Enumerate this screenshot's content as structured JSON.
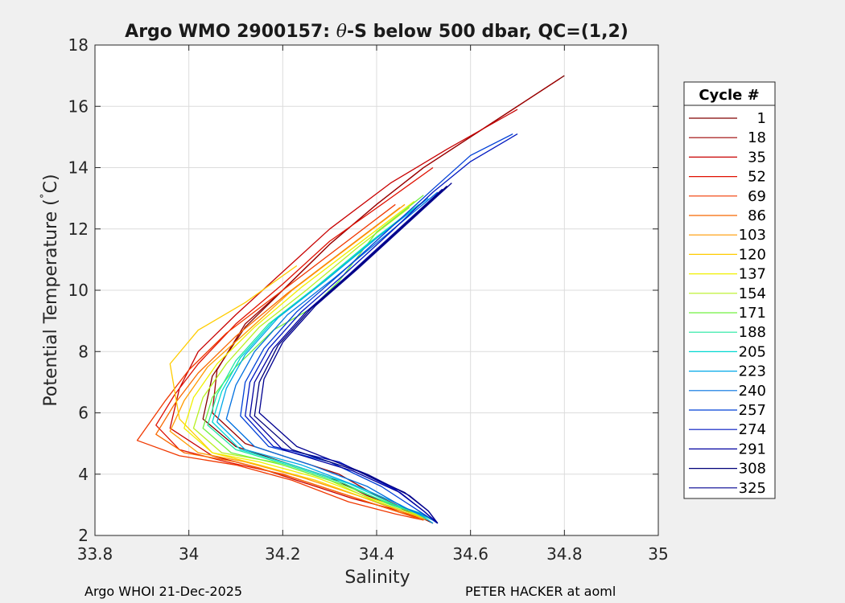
{
  "chart_data": {
    "type": "line",
    "title": "Argo WMO 2900157: θ-S below 500 dbar,  QC=(1,2)",
    "title_parts": {
      "prefix": "Argo WMO 2900157: ",
      "symbol": "θ",
      "suffix": "-S below 500 dbar,  QC=(1,2)"
    },
    "xlabel": "Salinity",
    "ylabel": "Potential Temperature (˚C)",
    "ylabel_parts": {
      "main": "Potential Temperature (",
      "degree": "˚",
      "unit": "C)"
    },
    "xlim": [
      33.8,
      35
    ],
    "ylim": [
      2,
      18
    ],
    "xticks": [
      33.8,
      34,
      34.2,
      34.4,
      34.6,
      34.8,
      35
    ],
    "xtick_labels": [
      "33.8",
      "34",
      "34.2",
      "34.4",
      "34.6",
      "34.8",
      "35"
    ],
    "yticks": [
      2,
      4,
      6,
      8,
      10,
      12,
      14,
      16,
      18
    ],
    "ytick_labels": [
      "2",
      "4",
      "6",
      "8",
      "10",
      "12",
      "14",
      "16",
      "18"
    ],
    "grid": true,
    "legend_title": "Cycle #",
    "legend_position": "outside right",
    "colormap": "jet",
    "series": [
      {
        "name": "1",
        "color": "#800000",
        "x": [
          34.8,
          34.65,
          34.5,
          34.4,
          34.3,
          34.2,
          34.12,
          34.05,
          34.03,
          34.1,
          34.2,
          34.3,
          34.38,
          34.45,
          34.52
        ],
        "y": [
          17.0,
          15.5,
          14.0,
          12.8,
          11.5,
          10.0,
          8.8,
          7.2,
          5.8,
          4.9,
          4.4,
          3.9,
          3.3,
          2.9,
          2.4
        ]
      },
      {
        "name": "18",
        "color": "#9c0000",
        "x": [
          34.79,
          34.64,
          34.5,
          34.4,
          34.3,
          34.2,
          34.12,
          34.06,
          34.05,
          34.12,
          34.22,
          34.32,
          34.4,
          34.47,
          34.52
        ],
        "y": [
          16.9,
          15.4,
          14.0,
          12.8,
          11.5,
          10.0,
          8.9,
          7.4,
          6.0,
          5.0,
          4.5,
          4.0,
          3.3,
          2.8,
          2.4
        ]
      },
      {
        "name": "35",
        "color": "#c80000",
        "x": [
          34.7,
          34.55,
          34.43,
          34.3,
          34.2,
          34.1,
          34.02,
          33.98,
          33.96,
          34.05,
          34.15,
          34.25,
          34.35,
          34.45,
          34.5
        ],
        "y": [
          15.9,
          14.6,
          13.5,
          12.0,
          10.6,
          9.2,
          8.0,
          6.8,
          5.5,
          4.6,
          4.2,
          3.7,
          3.2,
          2.8,
          2.5
        ]
      },
      {
        "name": "52",
        "color": "#e01000",
        "x": [
          34.52,
          34.42,
          34.3,
          34.2,
          34.1,
          34.02,
          33.97,
          33.93,
          33.98,
          34.08,
          34.2,
          34.32,
          34.42,
          34.5
        ],
        "y": [
          14.0,
          12.9,
          11.6,
          10.2,
          8.9,
          7.6,
          6.6,
          5.6,
          4.8,
          4.4,
          4.0,
          3.4,
          2.9,
          2.5
        ]
      },
      {
        "name": "69",
        "color": "#f03800",
        "x": [
          34.44,
          34.32,
          34.2,
          34.08,
          34.0,
          33.95,
          33.89,
          33.98,
          34.1,
          34.22,
          34.34,
          34.44,
          34.5
        ],
        "y": [
          12.8,
          11.4,
          10.0,
          8.6,
          7.4,
          6.4,
          5.1,
          4.6,
          4.3,
          3.8,
          3.1,
          2.7,
          2.5
        ]
      },
      {
        "name": "86",
        "color": "#f86800",
        "x": [
          34.45,
          34.33,
          34.21,
          34.1,
          34.02,
          33.97,
          33.93,
          33.99,
          34.1,
          34.22,
          34.34,
          34.44,
          34.5
        ],
        "y": [
          12.7,
          11.3,
          9.9,
          8.5,
          7.3,
          6.3,
          5.3,
          4.7,
          4.4,
          3.9,
          3.3,
          2.8,
          2.5
        ]
      },
      {
        "name": "103",
        "color": "#ff9a00",
        "x": [
          34.46,
          34.34,
          34.22,
          34.12,
          34.04,
          33.99,
          33.96,
          34.02,
          34.12,
          34.24,
          34.36,
          34.45,
          34.51
        ],
        "y": [
          12.8,
          11.4,
          10.0,
          8.6,
          7.5,
          6.4,
          5.4,
          4.7,
          4.4,
          3.9,
          3.3,
          2.8,
          2.5
        ]
      },
      {
        "name": "120",
        "color": "#ffcc00",
        "x": [
          34.23,
          34.12,
          34.02,
          33.96,
          33.98,
          34.05,
          34.15,
          34.27,
          34.38,
          34.46,
          34.51
        ],
        "y": [
          10.8,
          9.6,
          8.7,
          7.6,
          5.8,
          4.7,
          4.3,
          3.8,
          3.2,
          2.8,
          2.5
        ]
      },
      {
        "name": "137",
        "color": "#f0f000",
        "x": [
          34.48,
          34.36,
          34.24,
          34.14,
          34.06,
          34.01,
          33.99,
          34.05,
          34.15,
          34.27,
          34.39,
          34.47,
          34.51
        ],
        "y": [
          12.9,
          11.5,
          10.1,
          8.8,
          7.6,
          6.5,
          5.5,
          4.7,
          4.4,
          3.9,
          3.2,
          2.8,
          2.5
        ]
      },
      {
        "name": "154",
        "color": "#b8f020",
        "x": [
          34.47,
          34.36,
          34.25,
          34.15,
          34.08,
          34.03,
          34.01,
          34.07,
          34.18,
          34.3,
          34.4,
          34.48,
          34.51
        ],
        "y": [
          12.7,
          11.4,
          10.0,
          8.8,
          7.6,
          6.5,
          5.5,
          4.7,
          4.4,
          3.8,
          3.1,
          2.7,
          2.5
        ]
      },
      {
        "name": "171",
        "color": "#70f040",
        "x": [
          34.5,
          34.4,
          34.32,
          34.26,
          34.18,
          34.1,
          34.05,
          34.03,
          34.09,
          34.2,
          34.32,
          34.42,
          34.49,
          34.52
        ],
        "y": [
          13.1,
          11.9,
          10.3,
          9.4,
          8.7,
          7.5,
          6.5,
          5.5,
          4.7,
          4.3,
          3.7,
          3.1,
          2.7,
          2.5
        ]
      },
      {
        "name": "188",
        "color": "#20e8a0",
        "x": [
          34.49,
          34.38,
          34.27,
          34.17,
          34.1,
          34.06,
          34.04,
          34.1,
          34.21,
          34.33,
          34.43,
          34.49,
          34.52
        ],
        "y": [
          12.8,
          11.5,
          10.1,
          8.9,
          7.7,
          6.6,
          5.6,
          4.8,
          4.3,
          3.7,
          3.0,
          2.7,
          2.5
        ]
      },
      {
        "name": "205",
        "color": "#00d8d0",
        "x": [
          34.5,
          34.39,
          34.28,
          34.18,
          34.11,
          34.07,
          34.05,
          34.11,
          34.22,
          34.34,
          34.44,
          34.5,
          34.52
        ],
        "y": [
          12.9,
          11.6,
          10.2,
          9.0,
          7.8,
          6.7,
          5.7,
          4.8,
          4.3,
          3.7,
          3.0,
          2.7,
          2.5
        ]
      },
      {
        "name": "223",
        "color": "#00a8e8",
        "x": [
          34.51,
          34.4,
          34.29,
          34.19,
          34.12,
          34.08,
          34.06,
          34.12,
          34.24,
          34.36,
          34.45,
          34.5,
          34.52
        ],
        "y": [
          13.0,
          11.7,
          10.3,
          9.1,
          7.9,
          6.8,
          5.7,
          4.8,
          4.3,
          3.6,
          3.0,
          2.6,
          2.4
        ]
      },
      {
        "name": "240",
        "color": "#0070e0",
        "x": [
          34.53,
          34.42,
          34.31,
          34.21,
          34.14,
          34.1,
          34.08,
          34.14,
          34.26,
          34.38,
          34.46,
          34.51,
          34.53
        ],
        "y": [
          13.2,
          11.8,
          10.4,
          9.2,
          8.0,
          6.9,
          5.8,
          4.9,
          4.3,
          3.6,
          2.9,
          2.6,
          2.4
        ]
      },
      {
        "name": "257",
        "color": "#0040d8",
        "x": [
          34.69,
          34.6,
          34.52,
          34.42,
          34.32,
          34.23,
          34.16,
          34.12,
          34.11,
          34.17,
          34.3,
          34.41,
          34.48,
          34.53
        ],
        "y": [
          15.1,
          14.4,
          13.3,
          11.9,
          10.5,
          9.3,
          8.1,
          7.0,
          5.9,
          4.9,
          4.4,
          3.6,
          2.9,
          2.4
        ]
      },
      {
        "name": "274",
        "color": "#0018c0",
        "x": [
          34.7,
          34.6,
          34.52,
          34.43,
          34.33,
          34.24,
          34.17,
          34.13,
          34.12,
          34.18,
          34.32,
          34.44,
          34.5,
          34.53
        ],
        "y": [
          15.1,
          14.2,
          13.2,
          11.9,
          10.5,
          9.3,
          8.1,
          7.0,
          5.9,
          4.9,
          4.4,
          3.5,
          2.8,
          2.4
        ]
      },
      {
        "name": "291",
        "color": "#0000a0",
        "x": [
          34.54,
          34.44,
          34.34,
          34.25,
          34.18,
          34.14,
          34.13,
          34.2,
          34.35,
          34.45,
          34.5,
          34.53
        ],
        "y": [
          13.3,
          11.9,
          10.5,
          9.3,
          8.1,
          7.0,
          5.9,
          4.8,
          4.1,
          3.4,
          2.8,
          2.4
        ]
      },
      {
        "name": "308",
        "color": "#000078",
        "x": [
          34.55,
          34.45,
          34.35,
          34.26,
          34.19,
          34.15,
          34.14,
          34.22,
          34.36,
          34.46,
          34.51,
          34.53
        ],
        "y": [
          13.4,
          12.0,
          10.6,
          9.4,
          8.2,
          7.0,
          5.9,
          4.8,
          4.1,
          3.4,
          2.8,
          2.4
        ]
      },
      {
        "name": "325",
        "color": "#000090",
        "x": [
          34.56,
          34.46,
          34.36,
          34.27,
          34.2,
          34.16,
          34.15,
          34.23,
          34.38,
          34.47,
          34.51,
          34.53
        ],
        "y": [
          13.5,
          12.1,
          10.7,
          9.5,
          8.3,
          7.1,
          6.0,
          4.9,
          4.0,
          3.3,
          2.8,
          2.4
        ]
      }
    ]
  },
  "footer": {
    "left": "Argo WHOI 21-Dec-2025",
    "right": "PETER HACKER at aoml"
  }
}
